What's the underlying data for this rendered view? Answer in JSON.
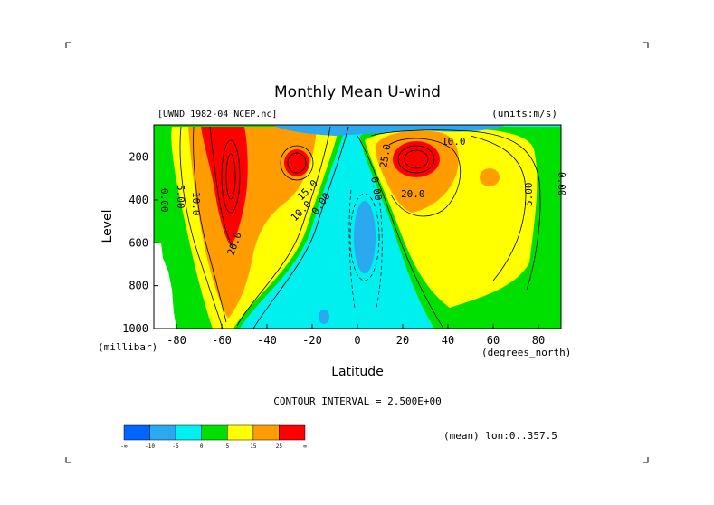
{
  "chart_data": {
    "type": "heatmap",
    "title": "Monthly Mean U-wind",
    "dataset": "[UWND_1982-04_NCEP.nc]",
    "units": "(units:m/s)",
    "xlabel": "Latitude",
    "x_units": "(degrees_north)",
    "ylabel": "Level",
    "y_units": "(millibar)",
    "xlim": [
      -90,
      90
    ],
    "ylim": [
      1000,
      50
    ],
    "x_ticks": [
      "-80",
      "-60",
      "-40",
      "-20",
      "0",
      "20",
      "40",
      "60",
      "80"
    ],
    "x_tick_values": [
      -80,
      -60,
      -40,
      -20,
      0,
      20,
      40,
      60,
      80
    ],
    "y_ticks": [
      "200",
      "400",
      "600",
      "800",
      "1000"
    ],
    "y_tick_values": [
      200,
      400,
      600,
      800,
      1000
    ],
    "contour_interval": "CONTOUR INTERVAL = 2.500E+00",
    "averaging": "(mean) lon:0..357.5",
    "colorbar": {
      "labels": [
        "-∞",
        "-10",
        "-5",
        "0",
        "5",
        "15",
        "25",
        "∞"
      ],
      "colors": [
        "#0066ff",
        "#2aa8f0",
        "#00f0f0",
        "#00e000",
        "#ffff00",
        "#ff9d00",
        "#ff0000"
      ]
    },
    "contour_labels": [
      "0.00",
      "5.00",
      "10.0",
      "15.0",
      "20.0",
      "25.0"
    ],
    "jets": [
      {
        "lat": -57,
        "level": 260,
        "max": 30
      },
      {
        "lat": -27,
        "level": 200,
        "max": 27
      },
      {
        "lat": 26,
        "level": 180,
        "max": 32
      },
      {
        "lat": 62,
        "level": 270,
        "max": 17
      }
    ]
  }
}
